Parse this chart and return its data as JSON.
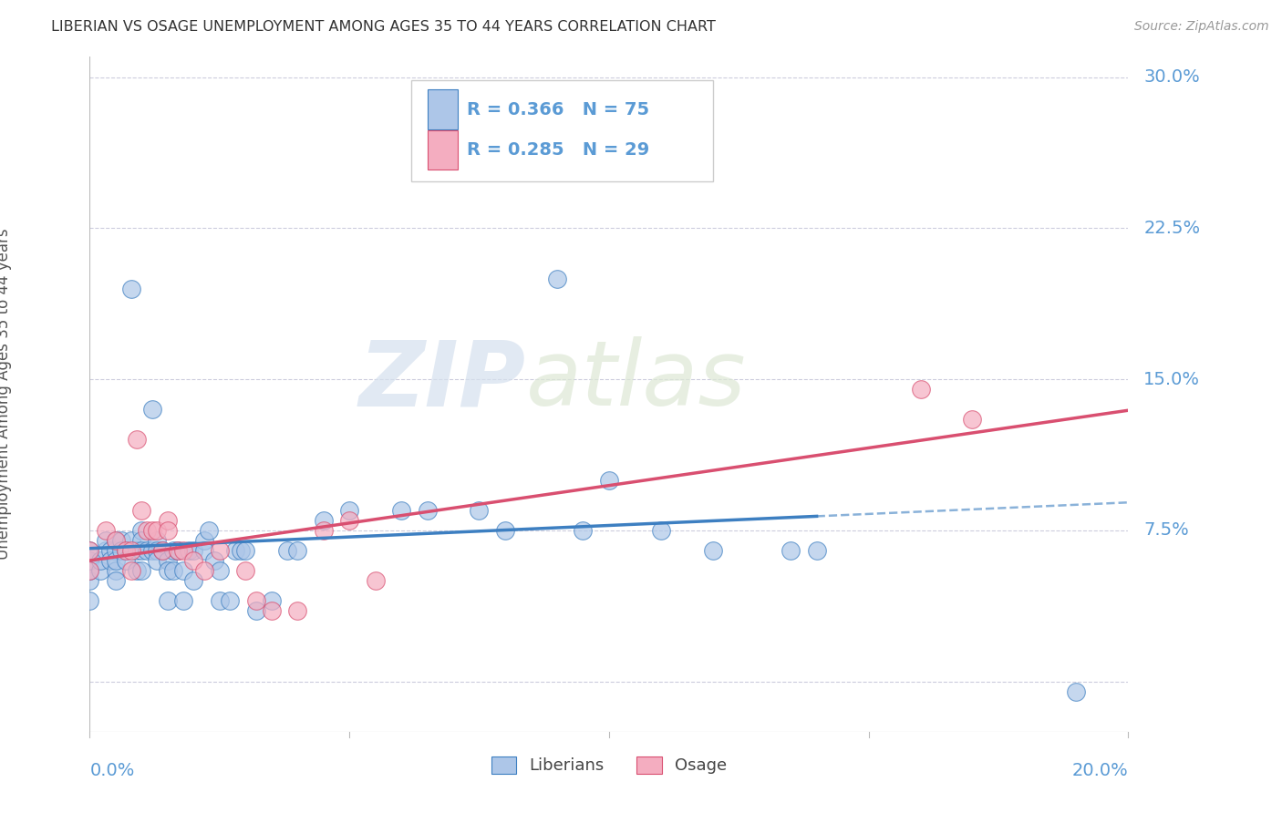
{
  "title": "LIBERIAN VS OSAGE UNEMPLOYMENT AMONG AGES 35 TO 44 YEARS CORRELATION CHART",
  "source": "Source: ZipAtlas.com",
  "ylabel": "Unemployment Among Ages 35 to 44 years",
  "xlim": [
    0.0,
    0.2
  ],
  "ylim": [
    -0.025,
    0.31
  ],
  "yticks": [
    0.0,
    0.075,
    0.15,
    0.225,
    0.3
  ],
  "ytick_labels": [
    "",
    "7.5%",
    "15.0%",
    "22.5%",
    "30.0%"
  ],
  "liberian_R": 0.366,
  "liberian_N": 75,
  "osage_R": 0.285,
  "osage_N": 29,
  "liberian_color": "#adc6e8",
  "osage_color": "#f4adc0",
  "liberian_line_color": "#3d7fc1",
  "osage_line_color": "#d94f70",
  "tick_label_color": "#5b9bd5",
  "grid_color": "#ccccdd",
  "title_color": "#333333",
  "watermark_zip": "ZIP",
  "watermark_atlas": "atlas",
  "liberian_x": [
    0.0,
    0.0,
    0.0,
    0.0,
    0.0,
    0.002,
    0.002,
    0.003,
    0.003,
    0.004,
    0.004,
    0.005,
    0.005,
    0.005,
    0.005,
    0.005,
    0.006,
    0.006,
    0.007,
    0.007,
    0.008,
    0.008,
    0.009,
    0.009,
    0.01,
    0.01,
    0.01,
    0.01,
    0.011,
    0.012,
    0.012,
    0.013,
    0.013,
    0.013,
    0.014,
    0.015,
    0.015,
    0.015,
    0.016,
    0.016,
    0.017,
    0.018,
    0.018,
    0.019,
    0.02,
    0.02,
    0.022,
    0.022,
    0.023,
    0.024,
    0.025,
    0.025,
    0.027,
    0.028,
    0.029,
    0.03,
    0.032,
    0.035,
    0.038,
    0.04,
    0.045,
    0.05,
    0.06,
    0.065,
    0.07,
    0.075,
    0.08,
    0.09,
    0.095,
    0.1,
    0.11,
    0.12,
    0.135,
    0.14,
    0.19
  ],
  "liberian_y": [
    0.04,
    0.05,
    0.055,
    0.06,
    0.065,
    0.055,
    0.06,
    0.065,
    0.07,
    0.065,
    0.06,
    0.065,
    0.07,
    0.055,
    0.06,
    0.05,
    0.07,
    0.065,
    0.065,
    0.06,
    0.195,
    0.07,
    0.065,
    0.055,
    0.075,
    0.07,
    0.065,
    0.055,
    0.065,
    0.135,
    0.065,
    0.07,
    0.065,
    0.06,
    0.065,
    0.06,
    0.055,
    0.04,
    0.065,
    0.055,
    0.065,
    0.055,
    0.04,
    0.065,
    0.065,
    0.05,
    0.07,
    0.065,
    0.075,
    0.06,
    0.055,
    0.04,
    0.04,
    0.065,
    0.065,
    0.065,
    0.035,
    0.04,
    0.065,
    0.065,
    0.08,
    0.085,
    0.085,
    0.085,
    0.27,
    0.085,
    0.075,
    0.2,
    0.075,
    0.1,
    0.075,
    0.065,
    0.065,
    0.065,
    -0.005
  ],
  "osage_x": [
    0.0,
    0.0,
    0.003,
    0.005,
    0.007,
    0.008,
    0.008,
    0.009,
    0.01,
    0.011,
    0.012,
    0.013,
    0.014,
    0.015,
    0.015,
    0.017,
    0.018,
    0.02,
    0.022,
    0.025,
    0.03,
    0.032,
    0.035,
    0.04,
    0.045,
    0.05,
    0.055,
    0.16,
    0.17
  ],
  "osage_y": [
    0.065,
    0.055,
    0.075,
    0.07,
    0.065,
    0.065,
    0.055,
    0.12,
    0.085,
    0.075,
    0.075,
    0.075,
    0.065,
    0.08,
    0.075,
    0.065,
    0.065,
    0.06,
    0.055,
    0.065,
    0.055,
    0.04,
    0.035,
    0.035,
    0.075,
    0.08,
    0.05,
    0.145,
    0.13
  ]
}
